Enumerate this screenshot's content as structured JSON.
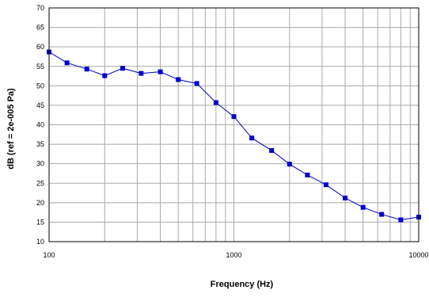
{
  "chart_data": {
    "type": "line",
    "xscale": "log",
    "x": [
      100,
      125,
      160,
      200,
      250,
      315,
      400,
      500,
      630,
      800,
      1000,
      1250,
      1600,
      2000,
      2500,
      3150,
      4000,
      5000,
      6300,
      8000,
      10000
    ],
    "series": [
      {
        "values": [
          58.7,
          55.9,
          54.3,
          52.6,
          54.5,
          53.2,
          53.6,
          51.6,
          50.6,
          45.7,
          42.1,
          36.6,
          33.4,
          29.9,
          27.1,
          24.6,
          21.2,
          18.8,
          17.0,
          15.6,
          16.3
        ],
        "color": "#0000cc",
        "marker": "square"
      }
    ],
    "xlim": [
      100,
      10000
    ],
    "ylim": [
      10,
      70
    ],
    "xticks": [
      "100",
      "1000",
      "10000"
    ],
    "yticks": [
      "10",
      "15",
      "20",
      "25",
      "30",
      "35",
      "40",
      "45",
      "50",
      "55",
      "60",
      "65",
      "70"
    ],
    "xlabel": "Frequency (Hz)",
    "ylabel": "dB (ref = 2e-005 Pa)",
    "grid": true,
    "legend": "none"
  }
}
